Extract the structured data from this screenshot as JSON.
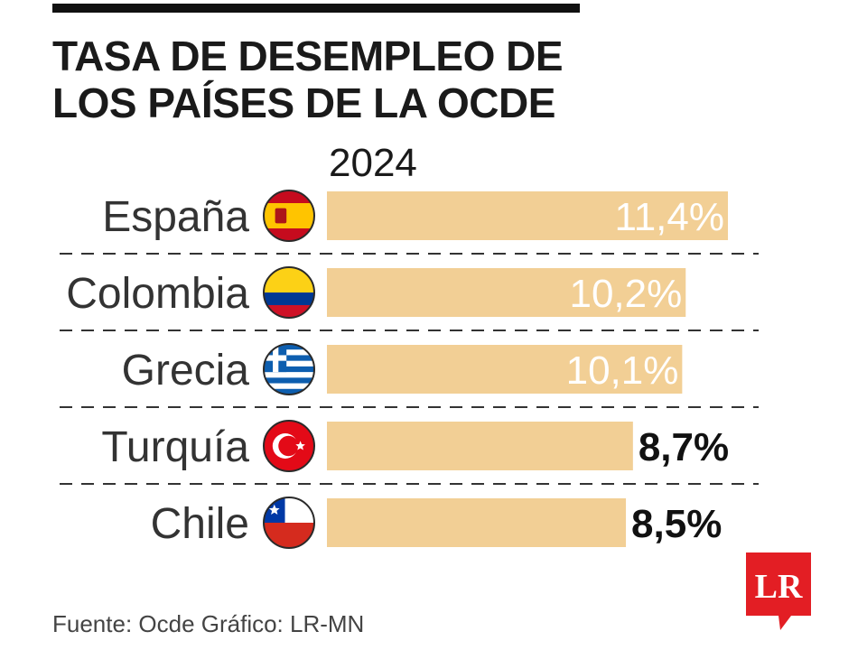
{
  "title": "TASA DE DESEMPLEO DE LOS PAÍSES DE LA OCDE",
  "year": "2024",
  "source": "Fuente: Ocde  Gráfico: LR-MN",
  "logo": {
    "text": "LR",
    "color": "#e31e24"
  },
  "colors": {
    "bar": "#f2cf95",
    "label_inside": "#ffffff",
    "label_outside": "#111111",
    "divider": "#333333"
  },
  "chart_data": {
    "type": "bar",
    "orientation": "horizontal",
    "title": "TASA DE DESEMPLEO DE LOS PAÍSES DE LA OCDE",
    "subtitle": "2024",
    "categories": [
      "España",
      "Colombia",
      "Grecia",
      "Turquía",
      "Chile"
    ],
    "values": [
      11.4,
      10.2,
      10.1,
      8.7,
      8.5
    ],
    "value_labels": [
      "11,4%",
      "10,2%",
      "10,1%",
      "8,7%",
      "8,5%"
    ],
    "flags": [
      "spain-flag-icon",
      "colombia-flag-icon",
      "greece-flag-icon",
      "turkey-flag-icon",
      "chile-flag-icon"
    ],
    "unit": "%",
    "xlim": [
      0,
      11.4
    ],
    "grid": false,
    "legend": "none"
  }
}
